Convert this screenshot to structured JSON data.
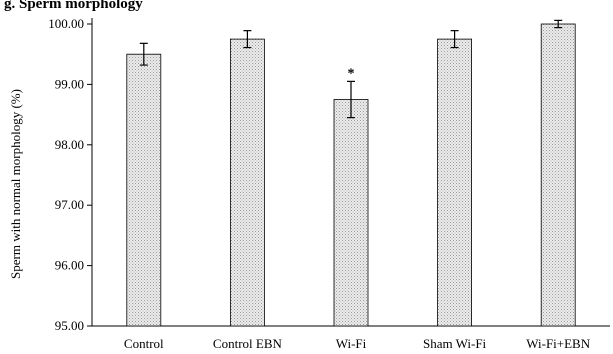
{
  "chart_data": {
    "type": "bar",
    "title": "g. Sperm morphology",
    "ylabel": "Sperm with normal morphology (%)",
    "xlabel": "",
    "categories": [
      "Control",
      "Control EBN",
      "Wi-Fi",
      "Sham Wi-Fi",
      "Wi-Fi+EBN"
    ],
    "values": [
      99.5,
      99.75,
      98.75,
      99.75,
      100.0
    ],
    "errors": [
      0.18,
      0.14,
      0.3,
      0.14,
      0.06
    ],
    "annotations": [
      "",
      "",
      "*",
      "",
      ""
    ],
    "ylim": [
      95.0,
      100.0
    ],
    "yticks": [
      "95.00",
      "96.00",
      "97.00",
      "98.00",
      "99.00",
      "100.00"
    ],
    "ytick_values": [
      95,
      96,
      97,
      98,
      99,
      100
    ],
    "grid": false,
    "bar_fill": "#e6e6e6",
    "bar_stroke": "#000000"
  }
}
